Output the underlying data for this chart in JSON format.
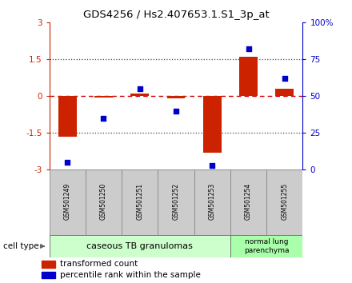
{
  "title": "GDS4256 / Hs2.407653.1.S1_3p_at",
  "samples": [
    "GSM501249",
    "GSM501250",
    "GSM501251",
    "GSM501252",
    "GSM501253",
    "GSM501254",
    "GSM501255"
  ],
  "transformed_count": [
    -1.65,
    -0.05,
    0.1,
    -0.07,
    -2.3,
    1.62,
    0.32
  ],
  "percentile_rank": [
    5,
    35,
    55,
    40,
    3,
    82,
    62
  ],
  "ylim_left": [
    -3,
    3
  ],
  "ylim_right": [
    0,
    100
  ],
  "yticks_left": [
    -3,
    -1.5,
    0,
    1.5,
    3
  ],
  "ytick_labels_left": [
    "-3",
    "-1.5",
    "0",
    "1.5",
    "3"
  ],
  "yticks_right": [
    0,
    25,
    50,
    75,
    100
  ],
  "ytick_labels_right": [
    "0",
    "25",
    "50",
    "75",
    "100%"
  ],
  "bar_color": "#cc2200",
  "dot_color": "#0000cc",
  "zero_line_color": "#cc0000",
  "dotted_line_color": "#444444",
  "group1_label": "caseous TB granulomas",
  "group2_label": "normal lung\nparenchyma",
  "group1_color": "#ccffcc",
  "group2_color": "#aaffaa",
  "cell_type_label": "cell type",
  "legend_bar_label": "transformed count",
  "legend_dot_label": "percentile rank within the sample",
  "bar_width": 0.5,
  "bg_color": "#ffffff",
  "plot_bg": "#ffffff",
  "label_box_color": "#cccccc",
  "label_box_edge": "#888888"
}
